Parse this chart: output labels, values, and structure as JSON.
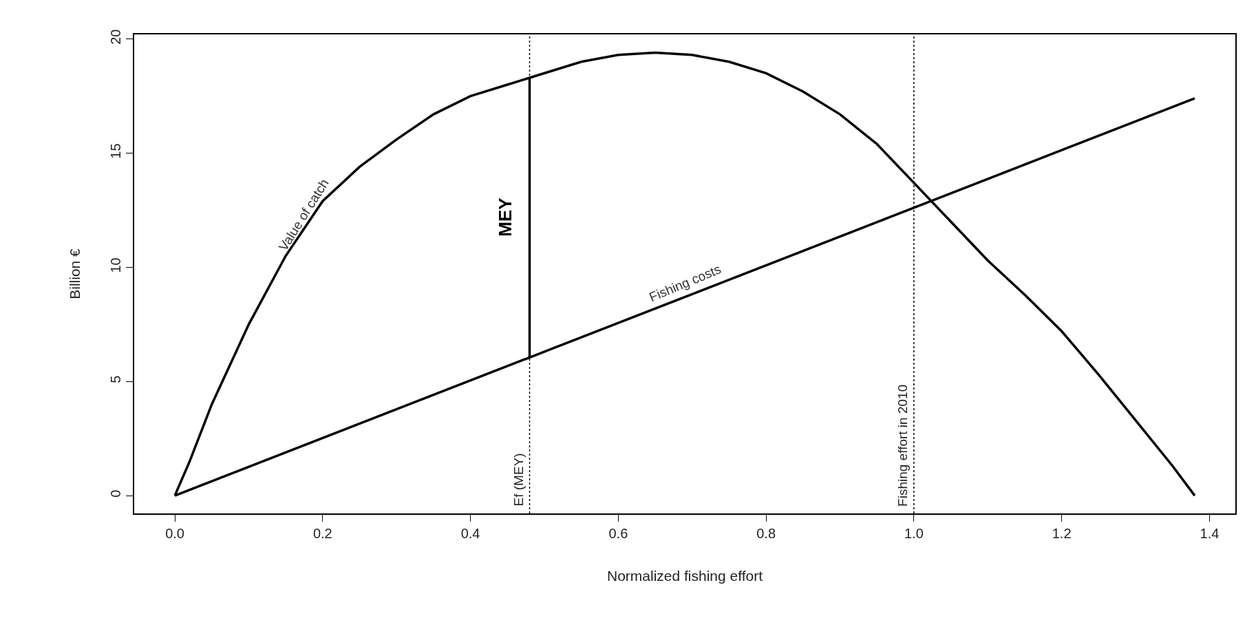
{
  "chart_data": {
    "type": "line",
    "xlabel": "Normalized fishing effort",
    "ylabel": "Billion €",
    "xlim": [
      -0.055,
      1.435
    ],
    "ylim": [
      -0.78,
      20.2
    ],
    "xticks": [
      {
        "value": 0,
        "label": "0.0"
      },
      {
        "value": 0.2,
        "label": "0.2"
      },
      {
        "value": 0.4,
        "label": "0.4"
      },
      {
        "value": 0.6,
        "label": "0.6"
      },
      {
        "value": 0.8,
        "label": "0.8"
      },
      {
        "value": 1,
        "label": "1.0"
      },
      {
        "value": 1.2,
        "label": "1.2"
      },
      {
        "value": 1.4,
        "label": "1.4"
      }
    ],
    "yticks": [
      0,
      5,
      10,
      15,
      20
    ],
    "grid": false,
    "legend": false,
    "marker": "none",
    "line_style": "solid",
    "series": [
      {
        "name": "Value of catch",
        "color": "#000000",
        "x": [
          0,
          0.02,
          0.05,
          0.1,
          0.15,
          0.2,
          0.25,
          0.3,
          0.35,
          0.4,
          0.45,
          0.48,
          0.55,
          0.6,
          0.65,
          0.7,
          0.75,
          0.8,
          0.85,
          0.9,
          0.95,
          1.0,
          1.05,
          1.1,
          1.15,
          1.2,
          1.25,
          1.3,
          1.35,
          1.38
        ],
        "values": [
          0,
          1.5,
          4.0,
          7.5,
          10.5,
          12.9,
          14.4,
          15.6,
          16.7,
          17.5,
          18.0,
          18.3,
          19.0,
          19.3,
          19.4,
          19.3,
          19.0,
          18.5,
          17.7,
          16.7,
          15.4,
          13.7,
          12.0,
          10.3,
          8.8,
          7.2,
          5.3,
          3.3,
          1.3,
          0
        ]
      },
      {
        "name": "Fishing costs",
        "color": "#000000",
        "x": [
          0,
          1.38
        ],
        "values": [
          0,
          17.4
        ]
      },
      {
        "name": "MEY",
        "color": "#000000",
        "x": [
          0.48,
          0.48
        ],
        "values": [
          6.05,
          18.3
        ]
      }
    ],
    "ref_lines": [
      {
        "axis": "x",
        "value": 0.48,
        "label": "Ef (MEY)",
        "color": "#000000",
        "line_style": "dotted"
      },
      {
        "axis": "x",
        "value": 1.0,
        "label": "Fishing effort in 2010",
        "color": "#000000",
        "line_style": "dotted"
      }
    ]
  }
}
